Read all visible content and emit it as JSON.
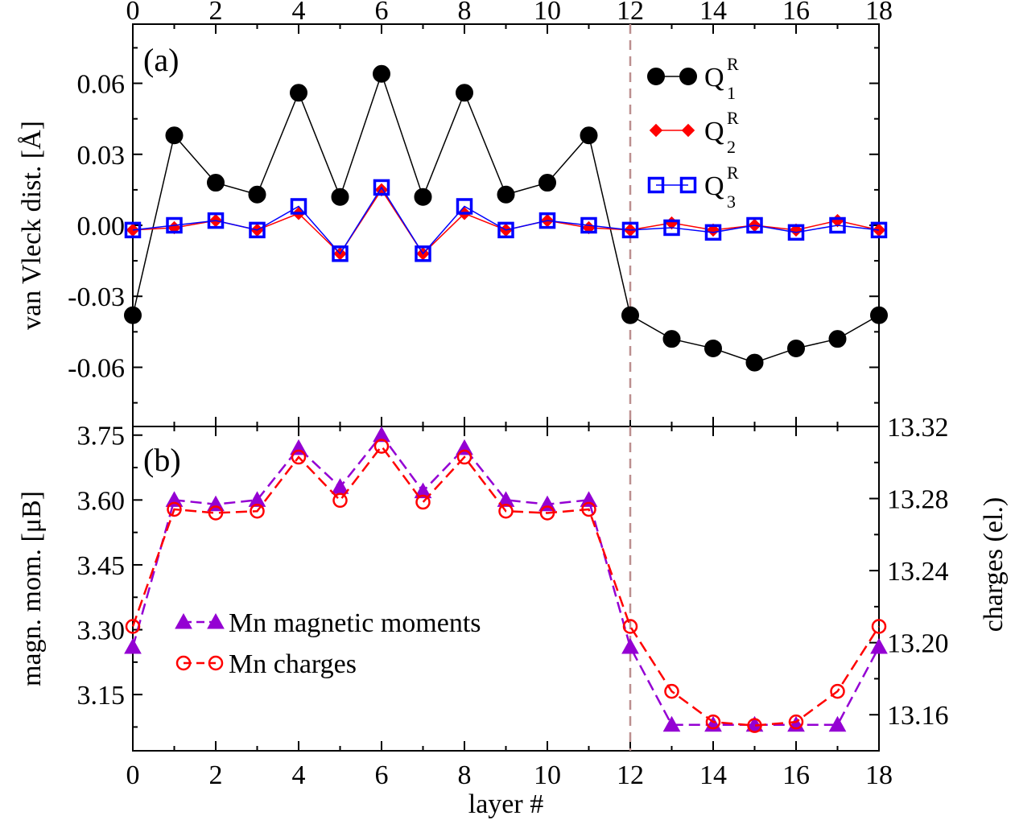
{
  "chart_data": [
    {
      "type": "line",
      "panel_label": "(a)",
      "ylabel": "van Vleck dist. [Å]",
      "xlim": [
        0,
        18
      ],
      "ylim": [
        -0.085,
        0.085
      ],
      "x_ticks": [
        0,
        2,
        4,
        6,
        8,
        10,
        12,
        14,
        16,
        18
      ],
      "x_tick_labels": [
        "0",
        "2",
        "4",
        "6",
        "8",
        "10",
        "12",
        "14",
        "16",
        "18"
      ],
      "y_ticks": [
        -0.06,
        -0.03,
        0.0,
        0.03,
        0.06
      ],
      "y_tick_labels": [
        "-0.06",
        "-0.03",
        "0.00",
        "0.03",
        "0.06"
      ],
      "vertical_line_x": 12,
      "legend_position": "top-right",
      "x": [
        0,
        1,
        2,
        3,
        4,
        5,
        6,
        7,
        8,
        9,
        10,
        11,
        12,
        13,
        14,
        15,
        16,
        17,
        18
      ],
      "series": [
        {
          "name": "Q",
          "sup": "R",
          "sub": "1",
          "color": "#000000",
          "marker": "filled-circle",
          "values": [
            -0.038,
            0.038,
            0.018,
            0.013,
            0.056,
            0.012,
            0.064,
            0.012,
            0.056,
            0.013,
            0.018,
            0.038,
            -0.038,
            -0.048,
            -0.052,
            -0.058,
            -0.052,
            -0.048,
            -0.038
          ]
        },
        {
          "name": "Q",
          "sup": "R",
          "sub": "2",
          "color": "#ff0000",
          "marker": "filled-diamond",
          "values": [
            -0.002,
            -0.001,
            0.002,
            -0.002,
            0.005,
            -0.012,
            0.015,
            -0.012,
            0.005,
            -0.002,
            0.002,
            -0.001,
            -0.002,
            0.001,
            -0.002,
            0.0,
            -0.002,
            0.002,
            -0.002
          ]
        },
        {
          "name": "Q",
          "sup": "R",
          "sub": "3",
          "color": "#0000ff",
          "marker": "open-square",
          "values": [
            -0.002,
            0.0,
            0.002,
            -0.002,
            0.008,
            -0.012,
            0.016,
            -0.012,
            0.008,
            -0.002,
            0.002,
            0.0,
            -0.002,
            -0.001,
            -0.003,
            0.0,
            -0.003,
            0.0,
            -0.002
          ]
        }
      ]
    },
    {
      "type": "line",
      "panel_label": "(b)",
      "xlabel": "layer #",
      "ylabel": "magn. mom. [μB]",
      "ylabel_right": "charges (el.)",
      "xlim": [
        0,
        18
      ],
      "ylim": [
        3.02,
        3.77
      ],
      "ylim_right": [
        13.14,
        13.32
      ],
      "x_ticks": [
        0,
        2,
        4,
        6,
        8,
        10,
        12,
        14,
        16,
        18
      ],
      "x_tick_labels": [
        "0",
        "2",
        "4",
        "6",
        "8",
        "10",
        "12",
        "14",
        "16",
        "18"
      ],
      "y_ticks": [
        3.15,
        3.3,
        3.45,
        3.6,
        3.75
      ],
      "y_tick_labels": [
        "3.15",
        "3.30",
        "3.45",
        "3.60",
        "3.75"
      ],
      "y_right_ticks": [
        13.16,
        13.2,
        13.24,
        13.28,
        13.32
      ],
      "y_right_tick_labels": [
        "13.16",
        "13.20",
        "13.24",
        "13.28",
        "13.32"
      ],
      "vertical_line_x": 12,
      "legend_position": "bottom-left",
      "x": [
        0,
        1,
        2,
        3,
        4,
        5,
        6,
        7,
        8,
        9,
        10,
        11,
        12,
        13,
        14,
        15,
        16,
        17,
        18
      ],
      "series": [
        {
          "name": "Mn magnetic moments",
          "axis": "left",
          "color": "#9400d3",
          "marker": "filled-triangle",
          "values": [
            3.26,
            3.6,
            3.59,
            3.6,
            3.72,
            3.63,
            3.75,
            3.62,
            3.72,
            3.6,
            3.59,
            3.6,
            3.26,
            3.08,
            3.08,
            3.08,
            3.08,
            3.08,
            3.26
          ]
        },
        {
          "name": "Mn charges",
          "axis": "right",
          "color": "#ff0000",
          "marker": "open-circle",
          "values": [
            13.209,
            13.274,
            13.272,
            13.273,
            13.303,
            13.279,
            13.309,
            13.278,
            13.303,
            13.273,
            13.272,
            13.274,
            13.209,
            13.173,
            13.156,
            13.154,
            13.156,
            13.173,
            13.209
          ]
        }
      ]
    }
  ]
}
